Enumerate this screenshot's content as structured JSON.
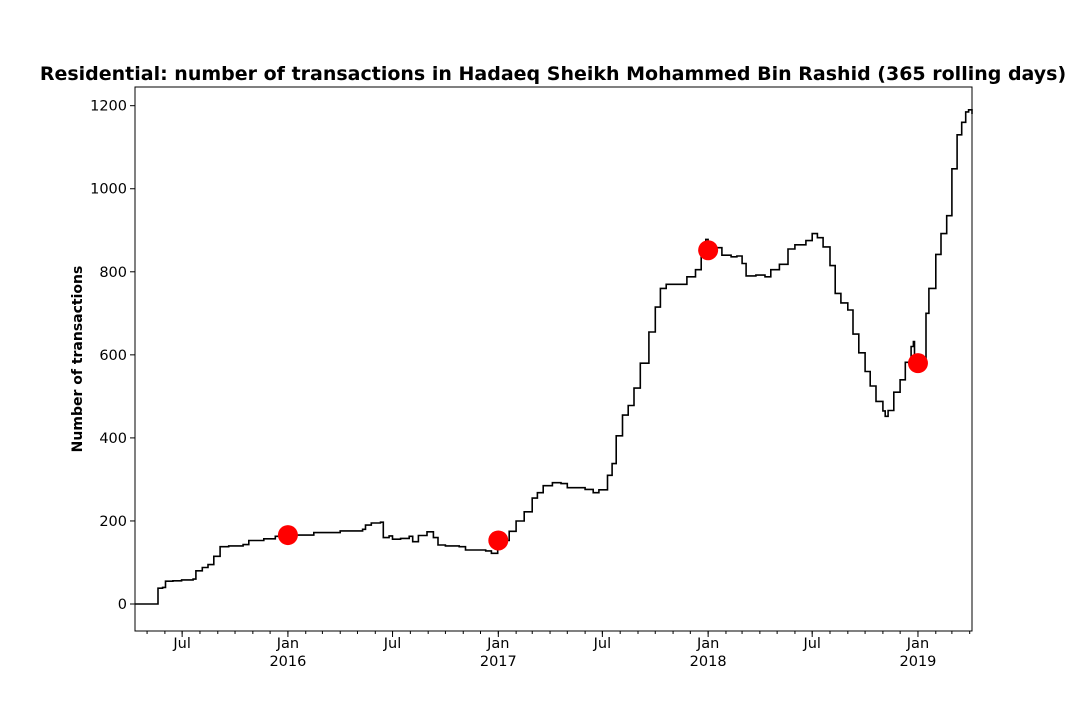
{
  "chart_data": {
    "type": "line",
    "title": "Residential: number of transactions in Hadaeq Sheikh Mohammed Bin Rashid (365 rolling days)",
    "xlabel": "",
    "ylabel": "Number of transactions",
    "xlim": [
      "2015-04-10",
      "2019-04-05"
    ],
    "ylim": [
      -65,
      1245
    ],
    "grid": false,
    "legend": "none",
    "yticks": [
      0,
      200,
      400,
      600,
      800,
      1000,
      1200
    ],
    "xticks": [
      {
        "date": "2015-07-01",
        "label": "Jul",
        "year": ""
      },
      {
        "date": "2016-01-01",
        "label": "Jan",
        "year": "2016"
      },
      {
        "date": "2016-07-01",
        "label": "Jul",
        "year": ""
      },
      {
        "date": "2017-01-01",
        "label": "Jan",
        "year": "2017"
      },
      {
        "date": "2017-07-01",
        "label": "Jul",
        "year": ""
      },
      {
        "date": "2018-01-01",
        "label": "Jan",
        "year": "2018"
      },
      {
        "date": "2018-07-01",
        "label": "Jul",
        "year": ""
      },
      {
        "date": "2019-01-01",
        "label": "Jan",
        "year": "2019"
      }
    ],
    "line_color": "#000000",
    "marker_color": "#ff0000",
    "series": [
      {
        "kind": "line",
        "points": [
          [
            "2015-04-10",
            0
          ],
          [
            "2015-05-18",
            0
          ],
          [
            "2015-05-20",
            38
          ],
          [
            "2015-05-28",
            40
          ],
          [
            "2015-06-02",
            55
          ],
          [
            "2015-06-15",
            56
          ],
          [
            "2015-06-30",
            58
          ],
          [
            "2015-07-20",
            60
          ],
          [
            "2015-07-25",
            80
          ],
          [
            "2015-08-05",
            88
          ],
          [
            "2015-08-15",
            95
          ],
          [
            "2015-08-25",
            115
          ],
          [
            "2015-09-05",
            138
          ],
          [
            "2015-09-20",
            140
          ],
          [
            "2015-10-15",
            143
          ],
          [
            "2015-10-25",
            153
          ],
          [
            "2015-11-20",
            157
          ],
          [
            "2015-12-10",
            163
          ],
          [
            "2016-01-01",
            166
          ],
          [
            "2016-02-15",
            172
          ],
          [
            "2016-04-01",
            176
          ],
          [
            "2016-05-10",
            180
          ],
          [
            "2016-05-15",
            190
          ],
          [
            "2016-05-25",
            195
          ],
          [
            "2016-06-10",
            197
          ],
          [
            "2016-06-15",
            160
          ],
          [
            "2016-06-25",
            164
          ],
          [
            "2016-07-01",
            156
          ],
          [
            "2016-07-15",
            158
          ],
          [
            "2016-07-30",
            163
          ],
          [
            "2016-08-05",
            150
          ],
          [
            "2016-08-15",
            165
          ],
          [
            "2016-08-30",
            174
          ],
          [
            "2016-09-10",
            160
          ],
          [
            "2016-09-18",
            142
          ],
          [
            "2016-10-01",
            140
          ],
          [
            "2016-10-25",
            138
          ],
          [
            "2016-11-05",
            130
          ],
          [
            "2016-12-10",
            128
          ],
          [
            "2016-12-20",
            122
          ],
          [
            "2016-12-31",
            133
          ],
          [
            "2017-01-01",
            153
          ],
          [
            "2017-01-20",
            175
          ],
          [
            "2017-02-01",
            200
          ],
          [
            "2017-02-15",
            222
          ],
          [
            "2017-03-01",
            255
          ],
          [
            "2017-03-10",
            268
          ],
          [
            "2017-03-20",
            285
          ],
          [
            "2017-04-05",
            292
          ],
          [
            "2017-04-20",
            290
          ],
          [
            "2017-05-01",
            280
          ],
          [
            "2017-06-01",
            276
          ],
          [
            "2017-06-15",
            268
          ],
          [
            "2017-06-25",
            275
          ],
          [
            "2017-07-10",
            310
          ],
          [
            "2017-07-18",
            338
          ],
          [
            "2017-07-25",
            405
          ],
          [
            "2017-08-05",
            455
          ],
          [
            "2017-08-15",
            478
          ],
          [
            "2017-08-25",
            520
          ],
          [
            "2017-09-05",
            580
          ],
          [
            "2017-09-20",
            655
          ],
          [
            "2017-10-01",
            715
          ],
          [
            "2017-10-10",
            760
          ],
          [
            "2017-10-20",
            770
          ],
          [
            "2017-11-10",
            770
          ],
          [
            "2017-11-25",
            788
          ],
          [
            "2017-12-10",
            805
          ],
          [
            "2017-12-20",
            845
          ],
          [
            "2017-12-28",
            878
          ],
          [
            "2018-01-01",
            852
          ],
          [
            "2018-01-10",
            858
          ],
          [
            "2018-01-25",
            840
          ],
          [
            "2018-02-10",
            836
          ],
          [
            "2018-02-20",
            838
          ],
          [
            "2018-03-01",
            820
          ],
          [
            "2018-03-08",
            790
          ],
          [
            "2018-03-25",
            792
          ],
          [
            "2018-04-10",
            788
          ],
          [
            "2018-04-20",
            805
          ],
          [
            "2018-05-05",
            818
          ],
          [
            "2018-05-20",
            855
          ],
          [
            "2018-06-01",
            865
          ],
          [
            "2018-06-20",
            875
          ],
          [
            "2018-07-01",
            892
          ],
          [
            "2018-07-10",
            882
          ],
          [
            "2018-07-20",
            860
          ],
          [
            "2018-08-01",
            815
          ],
          [
            "2018-08-10",
            748
          ],
          [
            "2018-08-20",
            725
          ],
          [
            "2018-09-01",
            708
          ],
          [
            "2018-09-10",
            650
          ],
          [
            "2018-09-20",
            605
          ],
          [
            "2018-10-01",
            560
          ],
          [
            "2018-10-10",
            525
          ],
          [
            "2018-10-20",
            488
          ],
          [
            "2018-11-01",
            465
          ],
          [
            "2018-11-05",
            452
          ],
          [
            "2018-11-10",
            466
          ],
          [
            "2018-11-20",
            510
          ],
          [
            "2018-12-01",
            540
          ],
          [
            "2018-12-10",
            582
          ],
          [
            "2018-12-20",
            620
          ],
          [
            "2018-12-24",
            632
          ],
          [
            "2018-12-26",
            600
          ],
          [
            "2018-12-31",
            580
          ],
          [
            "2019-01-10",
            585
          ],
          [
            "2019-01-15",
            700
          ],
          [
            "2019-01-20",
            760
          ],
          [
            "2019-02-01",
            842
          ],
          [
            "2019-02-10",
            892
          ],
          [
            "2019-02-20",
            935
          ],
          [
            "2019-03-01",
            1048
          ],
          [
            "2019-03-10",
            1130
          ],
          [
            "2019-03-18",
            1160
          ],
          [
            "2019-03-25",
            1185
          ],
          [
            "2019-03-30",
            1190
          ],
          [
            "2019-04-05",
            1180
          ]
        ]
      },
      {
        "kind": "markers",
        "points": [
          [
            "2016-01-01",
            166
          ],
          [
            "2017-01-01",
            153
          ],
          [
            "2018-01-01",
            852
          ],
          [
            "2019-01-01",
            580
          ]
        ]
      }
    ]
  }
}
